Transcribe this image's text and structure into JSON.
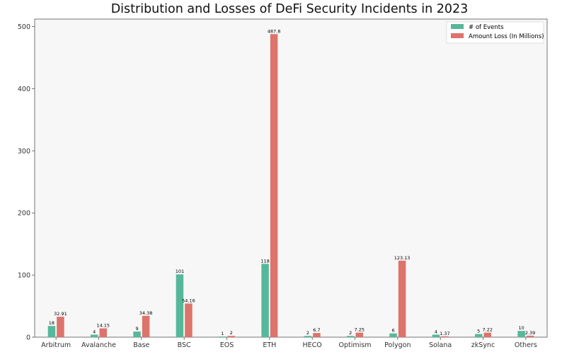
{
  "chart_data": {
    "type": "bar",
    "title": "Distribution and Losses of DeFi Security Incidents in 2023",
    "xlabel": "",
    "ylabel": "",
    "categories": [
      "Arbitrum",
      "Avalanche",
      "Base",
      "BSC",
      "EOS",
      "ETH",
      "HECO",
      "Optimism",
      "Polygon",
      "Solana",
      "zkSync",
      "Others"
    ],
    "series": [
      {
        "name": "# of Events",
        "color": "#55b89a",
        "values": [
          18,
          4,
          9,
          101,
          1,
          118,
          2,
          2,
          6,
          4,
          5,
          10
        ],
        "labels": [
          "18",
          "4",
          "9",
          "101",
          "1",
          "118",
          "2",
          "2",
          "6",
          "4",
          "5",
          "10"
        ]
      },
      {
        "name": "Amount Loss (In Millions)",
        "color": "#dd736b",
        "values": [
          32.91,
          14.15,
          34.38,
          54.16,
          2,
          487.8,
          6.7,
          7.25,
          123.13,
          1.37,
          7.22,
          2.39
        ],
        "labels": [
          "32.91",
          "14.15",
          "34.38",
          "54.16",
          "2",
          "487.8",
          "6.7",
          "7.25",
          "123.13",
          "1.37",
          "7.22",
          "2.39"
        ]
      }
    ],
    "ylim": [
      0,
      512
    ],
    "yticks": [
      0,
      100,
      200,
      300,
      400,
      500
    ],
    "grid": false,
    "legend_position": "top-right",
    "plot_background": "#f7f7f7"
  }
}
